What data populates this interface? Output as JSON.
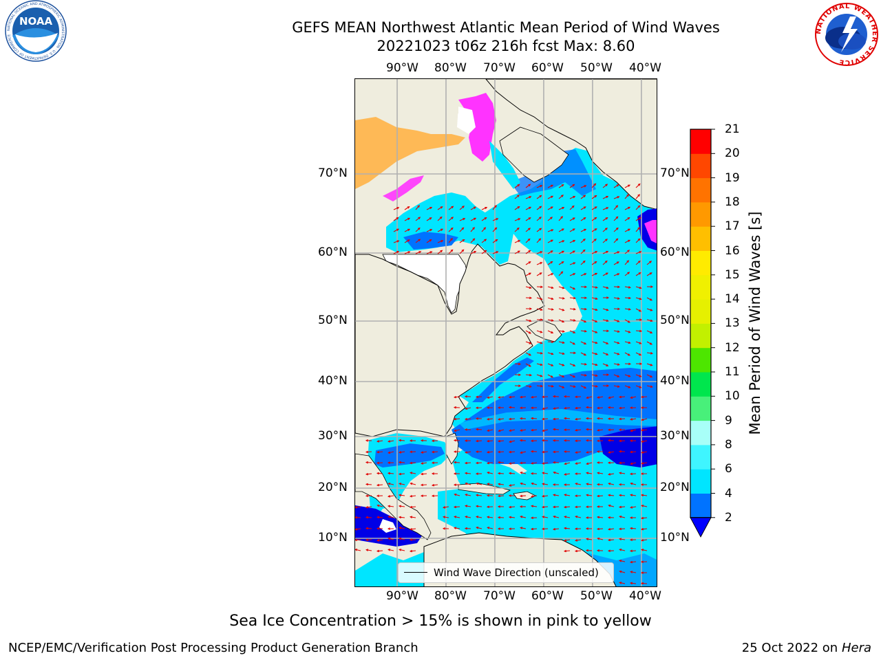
{
  "header": {
    "title_line1": "GEFS MEAN Northwest Atlantic Mean Period of Wind Waves",
    "title_line2": "20221023 t06z 216h fcst   Max: 8.60"
  },
  "logos": {
    "noaa_text": "NOAA",
    "noaa_ring_text": "NATIONAL OCEANIC AND ATMOSPHERIC ADMINISTRATION · U.S. DEPARTMENT OF COMMERCE",
    "nws_ring_text": "NATIONAL WEATHER SERVICE"
  },
  "map": {
    "lon_ticks": [
      "90°W",
      "80°W",
      "70°W",
      "60°W",
      "50°W",
      "40°W"
    ],
    "lat_ticks": [
      "70°N",
      "60°N",
      "50°N",
      "40°N",
      "30°N",
      "20°N",
      "10°N"
    ],
    "lon_values": [
      -90,
      -80,
      -70,
      -60,
      -50,
      -40
    ],
    "lat_values": [
      70,
      60,
      50,
      40,
      30,
      20,
      10
    ],
    "legend_label": "Wind Wave Direction (unscaled)",
    "colors": {
      "land": "#efedde",
      "arrow": "#e00000",
      "grid": "#b0b0b0",
      "period_2_4": "#0073ff",
      "period_4_6": "#00e5ff",
      "deep_blue": "#0000e6",
      "ice": "#ff33ff"
    }
  },
  "colorbar": {
    "title": "Mean Period of Wind Waves [s]",
    "levels": [
      "2",
      "4",
      "6",
      "8",
      "9",
      "10",
      "11",
      "12",
      "13",
      "14",
      "15",
      "16",
      "17",
      "18",
      "19",
      "20",
      "21"
    ],
    "level_values": [
      2,
      4,
      6,
      8,
      9,
      10,
      11,
      12,
      13,
      14,
      15,
      16,
      17,
      18,
      19,
      20,
      21
    ],
    "colors": [
      "#0073ff",
      "#00e5ff",
      "#3ff5ff",
      "#a8fff8",
      "#48f07a",
      "#00e64d",
      "#4de600",
      "#c2f000",
      "#e6f000",
      "#f0f000",
      "#ffeb00",
      "#ffbf00",
      "#ff9900",
      "#ff7300",
      "#ff4700",
      "#ff0000"
    ],
    "extend_color": "#0000ff"
  },
  "subtitle": "Sea Ice Concentration > 15% is shown in pink to yellow",
  "footer": {
    "credit": "NCEP/EMC/Verification Post Processing Product Generation Branch",
    "date_prefix": "25 Oct 2022 on ",
    "host": "Hera"
  }
}
